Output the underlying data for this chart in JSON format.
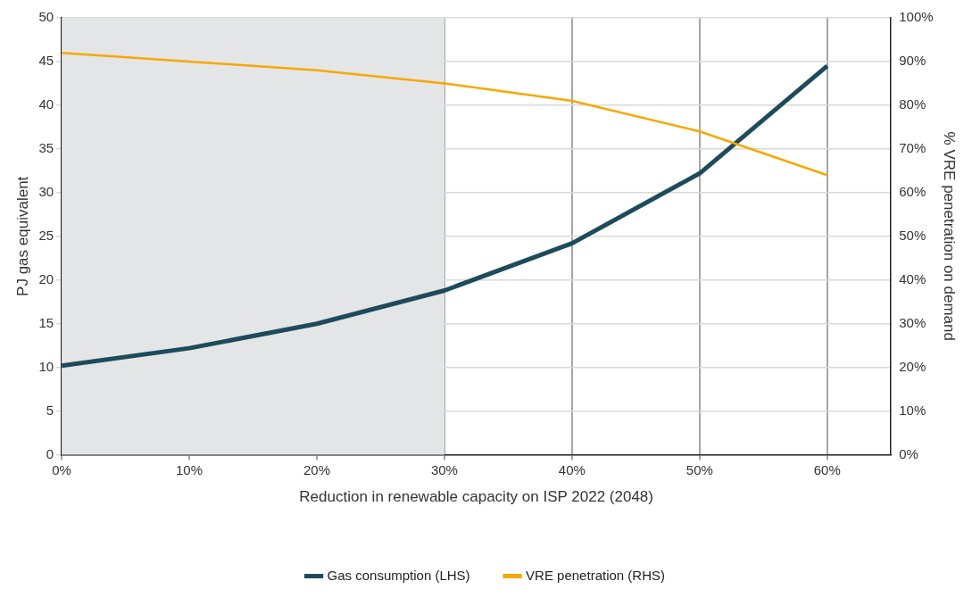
{
  "chart_data": {
    "type": "line",
    "xlabel": "Reduction in renewable capacity on ISP 2022 (2048)",
    "ylabel": "PJ gas equivalent",
    "y2label": "% VRE penetration on demand",
    "x": [
      0,
      10,
      20,
      30,
      40,
      50,
      60
    ],
    "series": [
      {
        "name": "Gas consumption (LHS)",
        "color": "#1d4b5c",
        "values": [
          10.2,
          12.2,
          15,
          18.8,
          24.2,
          32.2,
          44.5
        ]
      },
      {
        "name": "VRE penetration (RHS)",
        "color": "#f5a800",
        "axis": "y2",
        "values": [
          92,
          90,
          88,
          85,
          81,
          74,
          64
        ]
      }
    ],
    "xlim": [
      0,
      65
    ],
    "xticks": [
      {
        "value": 0,
        "label": "0%"
      },
      {
        "value": 10,
        "label": "10%"
      },
      {
        "value": 20,
        "label": "20%"
      },
      {
        "value": 30,
        "label": "30%"
      },
      {
        "value": 40,
        "label": "40%"
      },
      {
        "value": 50,
        "label": "50%"
      },
      {
        "value": 60,
        "label": "60%"
      }
    ],
    "ylim": [
      0,
      50
    ],
    "yticks": [
      0,
      5,
      10,
      15,
      20,
      25,
      30,
      35,
      40,
      45,
      50
    ],
    "y2lim": [
      0,
      100
    ],
    "y2ticks": [
      {
        "value": 0,
        "label": "0%"
      },
      {
        "value": 10,
        "label": "10%"
      },
      {
        "value": 20,
        "label": "20%"
      },
      {
        "value": 30,
        "label": "30%"
      },
      {
        "value": 40,
        "label": "40%"
      },
      {
        "value": 50,
        "label": "50%"
      },
      {
        "value": 60,
        "label": "60%"
      },
      {
        "value": 70,
        "label": "70%"
      },
      {
        "value": 80,
        "label": "80%"
      },
      {
        "value": 90,
        "label": "90%"
      },
      {
        "value": 100,
        "label": "100%"
      }
    ],
    "bands": [
      {
        "axis": "x",
        "from": 0,
        "to": 30,
        "color": "#e4e5e7"
      }
    ],
    "grid": true,
    "legend": "bottom",
    "marker": "none",
    "line_style": "solid"
  }
}
